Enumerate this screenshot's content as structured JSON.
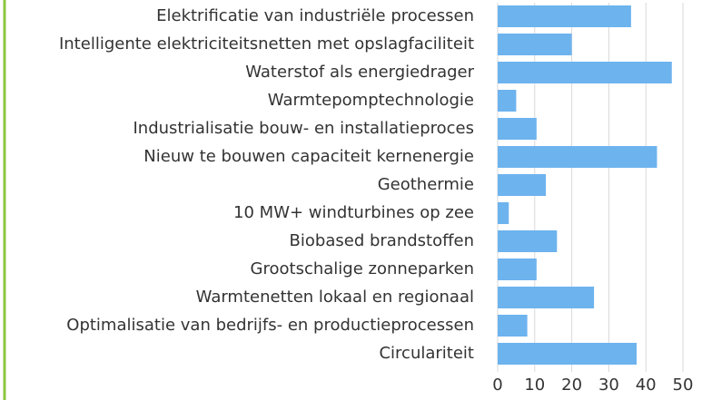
{
  "chart_data": {
    "type": "barh",
    "categories": [
      "Elektrificatie van industriële processen",
      "Intelligente elektriciteitsnetten met opslagfaciliteit",
      "Waterstof als energiedrager",
      "Warmtepomptechnologie",
      "Industrialisatie bouw- en installatieproces",
      "Nieuw te bouwen capaciteit kernenergie",
      "Geothermie",
      "10 MW+ windturbines op zee",
      "Biobased brandstoffen",
      "Grootschalige zonneparken",
      "Warmtenetten lokaal en regionaal",
      "Optimalisatie van bedrijfs- en productieprocessen",
      "Circulariteit"
    ],
    "values": [
      36,
      20,
      47,
      5,
      10.5,
      43,
      13,
      3,
      16,
      10.5,
      26,
      8,
      37.5
    ],
    "color": "#6db3ee",
    "xlim": [
      0,
      50
    ],
    "xticks": [
      0,
      10,
      20,
      30,
      40,
      50
    ],
    "grid": true
  }
}
